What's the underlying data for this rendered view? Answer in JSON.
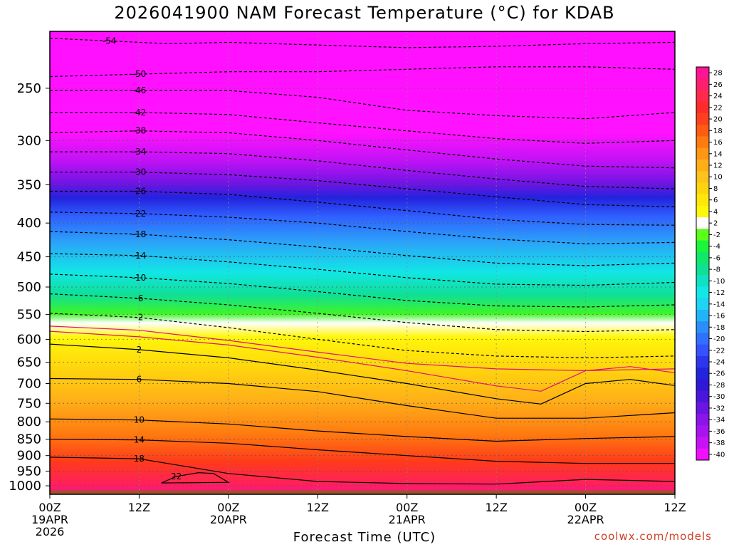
{
  "chart_data": {
    "type": "heatmap",
    "title": "2026041900 NAM Forecast Temperature (°C) for KDAB",
    "xlabel": "Forecast Time (UTC)",
    "ylabel": "",
    "credit": "coolwx.com/models",
    "y_axis": {
      "scale": "log",
      "inverted": true,
      "range": [
        1030,
        205
      ],
      "ticks": [
        250,
        300,
        350,
        400,
        450,
        500,
        550,
        600,
        650,
        700,
        750,
        800,
        850,
        900,
        950,
        1000
      ]
    },
    "x_axis": {
      "range_hours": [
        0,
        84
      ],
      "ticks": [
        {
          "hour": 0,
          "lines": [
            "00Z",
            "19APR",
            "2026"
          ]
        },
        {
          "hour": 12,
          "lines": [
            "12Z"
          ]
        },
        {
          "hour": 24,
          "lines": [
            "00Z",
            "20APR"
          ]
        },
        {
          "hour": 36,
          "lines": [
            "12Z"
          ]
        },
        {
          "hour": 48,
          "lines": [
            "00Z",
            "21APR"
          ]
        },
        {
          "hour": 60,
          "lines": [
            "12Z"
          ]
        },
        {
          "hour": 72,
          "lines": [
            "00Z",
            "22APR"
          ]
        },
        {
          "hour": 84,
          "lines": [
            "12Z"
          ]
        }
      ]
    },
    "grid": true,
    "colorbar": {
      "labels": [
        "28",
        "26",
        "24",
        "22",
        "20",
        "18",
        "16",
        "14",
        "12",
        "10",
        "8",
        "6",
        "4",
        "2",
        "-2",
        "-4",
        "-6",
        "-8",
        "-10",
        "-12",
        "-14",
        "-16",
        "-18",
        "-20",
        "-22",
        "-24",
        "-26",
        "-28",
        "-30",
        "-32",
        "-34",
        "-36",
        "-38",
        "-40"
      ],
      "colors": [
        "#ff1493",
        "#ff1f6e",
        "#ff2a4c",
        "#ff2b2b",
        "#ff3f1e",
        "#ff5b13",
        "#ff7a10",
        "#ff9614",
        "#ffae18",
        "#ffc11c",
        "#ffd40e",
        "#ffe808",
        "#fff70a",
        "#ffffff",
        "#5cff1a",
        "#1cf53a",
        "#10e86a",
        "#10df94",
        "#10e0c4",
        "#12e8e8",
        "#1dd4f5",
        "#22b4f8",
        "#2a8ff9",
        "#3070ff",
        "#3652ff",
        "#2e35ee",
        "#2324dd",
        "#3019d6",
        "#4a15dd",
        "#6b14e3",
        "#8a14ea",
        "#a814f0",
        "#c812f5",
        "#f00fff"
      ],
      "placement": "right"
    },
    "isotherms": [
      {
        "label": "-54",
        "points": [
          [
            0,
            210
          ],
          [
            8,
            212
          ],
          [
            16,
            214
          ],
          [
            24,
            213
          ],
          [
            36,
            215
          ],
          [
            48,
            217
          ],
          [
            60,
            216
          ],
          [
            72,
            214
          ],
          [
            84,
            213
          ]
        ]
      },
      {
        "label": "-50",
        "points": [
          [
            0,
            240
          ],
          [
            12,
            238
          ],
          [
            24,
            236
          ],
          [
            36,
            236
          ],
          [
            48,
            234
          ],
          [
            60,
            232
          ],
          [
            72,
            232
          ],
          [
            84,
            234
          ]
        ]
      },
      {
        "label": "-46",
        "points": [
          [
            0,
            252
          ],
          [
            12,
            252
          ],
          [
            24,
            252
          ],
          [
            36,
            258
          ],
          [
            48,
            270
          ],
          [
            60,
            275
          ],
          [
            72,
            278
          ],
          [
            84,
            272
          ]
        ]
      },
      {
        "label": "-42",
        "points": [
          [
            0,
            272
          ],
          [
            12,
            272
          ],
          [
            24,
            274
          ],
          [
            36,
            282
          ],
          [
            48,
            290
          ],
          [
            60,
            298
          ],
          [
            72,
            303
          ],
          [
            84,
            300
          ]
        ]
      },
      {
        "label": "-38",
        "points": [
          [
            0,
            292
          ],
          [
            12,
            290
          ],
          [
            24,
            292
          ],
          [
            36,
            300
          ],
          [
            48,
            310
          ],
          [
            60,
            320
          ],
          [
            72,
            328
          ],
          [
            84,
            330
          ]
        ]
      },
      {
        "label": "-34",
        "points": [
          [
            0,
            312
          ],
          [
            12,
            312
          ],
          [
            24,
            314
          ],
          [
            36,
            322
          ],
          [
            48,
            333
          ],
          [
            60,
            343
          ],
          [
            72,
            352
          ],
          [
            84,
            355
          ]
        ]
      },
      {
        "label": "-30",
        "points": [
          [
            0,
            335
          ],
          [
            12,
            335
          ],
          [
            24,
            338
          ],
          [
            36,
            345
          ],
          [
            48,
            355
          ],
          [
            60,
            365
          ],
          [
            72,
            375
          ],
          [
            84,
            378
          ]
        ]
      },
      {
        "label": "-26",
        "points": [
          [
            0,
            358
          ],
          [
            12,
            358
          ],
          [
            24,
            362
          ],
          [
            36,
            372
          ],
          [
            48,
            383
          ],
          [
            60,
            395
          ],
          [
            72,
            402
          ],
          [
            84,
            403
          ]
        ]
      },
      {
        "label": "-22",
        "points": [
          [
            0,
            385
          ],
          [
            12,
            387
          ],
          [
            24,
            392
          ],
          [
            36,
            400
          ],
          [
            48,
            412
          ],
          [
            60,
            423
          ],
          [
            72,
            430
          ],
          [
            84,
            428
          ]
        ]
      },
      {
        "label": "-18",
        "points": [
          [
            0,
            412
          ],
          [
            12,
            416
          ],
          [
            24,
            424
          ],
          [
            36,
            435
          ],
          [
            48,
            448
          ],
          [
            60,
            460
          ],
          [
            72,
            464
          ],
          [
            84,
            460
          ]
        ]
      },
      {
        "label": "-14",
        "points": [
          [
            0,
            445
          ],
          [
            12,
            448
          ],
          [
            24,
            458
          ],
          [
            36,
            470
          ],
          [
            48,
            484
          ],
          [
            60,
            495
          ],
          [
            72,
            497
          ],
          [
            84,
            492
          ]
        ]
      },
      {
        "label": "-10",
        "points": [
          [
            0,
            478
          ],
          [
            12,
            484
          ],
          [
            24,
            494
          ],
          [
            36,
            508
          ],
          [
            48,
            524
          ],
          [
            60,
            534
          ],
          [
            72,
            536
          ],
          [
            84,
            532
          ]
        ]
      },
      {
        "label": "-6",
        "points": [
          [
            0,
            512
          ],
          [
            12,
            520
          ],
          [
            24,
            532
          ],
          [
            36,
            548
          ],
          [
            48,
            566
          ],
          [
            60,
            580
          ],
          [
            72,
            584
          ],
          [
            84,
            580
          ]
        ]
      },
      {
        "label": "-2",
        "points": [
          [
            0,
            548
          ],
          [
            12,
            556
          ],
          [
            24,
            576
          ],
          [
            36,
            600
          ],
          [
            48,
            624
          ],
          [
            60,
            636
          ],
          [
            72,
            640
          ],
          [
            84,
            636
          ]
        ]
      },
      {
        "label": "2",
        "points": [
          [
            0,
            610
          ],
          [
            12,
            622
          ],
          [
            24,
            640
          ],
          [
            36,
            668
          ],
          [
            48,
            700
          ],
          [
            60,
            738
          ],
          [
            66,
            752
          ],
          [
            72,
            700
          ],
          [
            78,
            690
          ],
          [
            84,
            705
          ]
        ]
      },
      {
        "label": "6",
        "points": [
          [
            0,
            688
          ],
          [
            12,
            690
          ],
          [
            24,
            700
          ],
          [
            36,
            720
          ],
          [
            48,
            756
          ],
          [
            60,
            790
          ],
          [
            72,
            790
          ],
          [
            84,
            775
          ]
        ]
      },
      {
        "label": "10",
        "points": [
          [
            0,
            792
          ],
          [
            12,
            795
          ],
          [
            24,
            806
          ],
          [
            36,
            826
          ],
          [
            48,
            842
          ],
          [
            60,
            856
          ],
          [
            72,
            848
          ],
          [
            84,
            842
          ]
        ]
      },
      {
        "label": "14",
        "points": [
          [
            0,
            850
          ],
          [
            12,
            852
          ],
          [
            24,
            862
          ],
          [
            36,
            882
          ],
          [
            48,
            900
          ],
          [
            60,
            918
          ],
          [
            72,
            925
          ],
          [
            84,
            925
          ]
        ]
      },
      {
        "label": "18",
        "points": [
          [
            0,
            905
          ],
          [
            12,
            910
          ],
          [
            24,
            958
          ],
          [
            36,
            985
          ],
          [
            48,
            992
          ],
          [
            60,
            994
          ],
          [
            72,
            978
          ],
          [
            84,
            985
          ]
        ]
      },
      {
        "label": "22",
        "points": [
          [
            15,
            990
          ],
          [
            17,
            968
          ],
          [
            20,
            955
          ],
          [
            22,
            958
          ],
          [
            24,
            988
          ]
        ]
      }
    ]
  }
}
